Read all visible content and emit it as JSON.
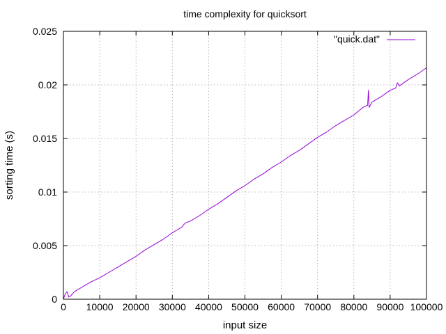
{
  "chart_data": {
    "type": "line",
    "title": "time complexity for quicksort",
    "xlabel": "input size",
    "ylabel": "sorting time (s)",
    "xlim": [
      0,
      100000
    ],
    "ylim": [
      0,
      0.025
    ],
    "x_ticks": [
      0,
      10000,
      20000,
      30000,
      40000,
      50000,
      60000,
      70000,
      80000,
      90000,
      100000
    ],
    "x_tick_labels": [
      "0",
      "10000",
      "20000",
      "30000",
      "40000",
      "50000",
      "60000",
      "70000",
      "80000",
      "90000",
      "100000"
    ],
    "y_ticks": [
      0,
      0.005,
      0.01,
      0.015,
      0.02,
      0.025
    ],
    "y_tick_labels": [
      "0",
      "0.005",
      "0.01",
      "0.015",
      "0.02",
      "0.025"
    ],
    "grid": true,
    "legend_position": "top-right",
    "series": [
      {
        "name": "\"quick.dat\"",
        "color": "#9400d3",
        "x": [
          0,
          500,
          1000,
          1500,
          2000,
          3000,
          5000,
          7500,
          10000,
          12500,
          15000,
          17500,
          20000,
          22500,
          25000,
          27500,
          30000,
          32500,
          33500,
          35000,
          37500,
          40000,
          42500,
          45000,
          47500,
          50000,
          52500,
          55000,
          57500,
          60000,
          62500,
          65000,
          67500,
          70000,
          72500,
          75000,
          77500,
          80000,
          82500,
          83800,
          84000,
          84200,
          85000,
          87500,
          90000,
          91500,
          92000,
          92500,
          95000,
          97500,
          100000
        ],
        "y": [
          0,
          0.0005,
          0.0007,
          0.0002,
          0.0003,
          0.0007,
          0.0011,
          0.0016,
          0.002,
          0.0025,
          0.003,
          0.0035,
          0.004,
          0.0046,
          0.0051,
          0.0056,
          0.0062,
          0.0067,
          0.0071,
          0.0073,
          0.0078,
          0.0084,
          0.0089,
          0.0095,
          0.0101,
          0.0106,
          0.0112,
          0.0117,
          0.0123,
          0.0128,
          0.0134,
          0.0139,
          0.0145,
          0.0151,
          0.0156,
          0.0162,
          0.0167,
          0.0172,
          0.0179,
          0.0181,
          0.0195,
          0.0179,
          0.0184,
          0.0189,
          0.0195,
          0.0197,
          0.0202,
          0.0199,
          0.0205,
          0.021,
          0.0216
        ]
      }
    ]
  }
}
